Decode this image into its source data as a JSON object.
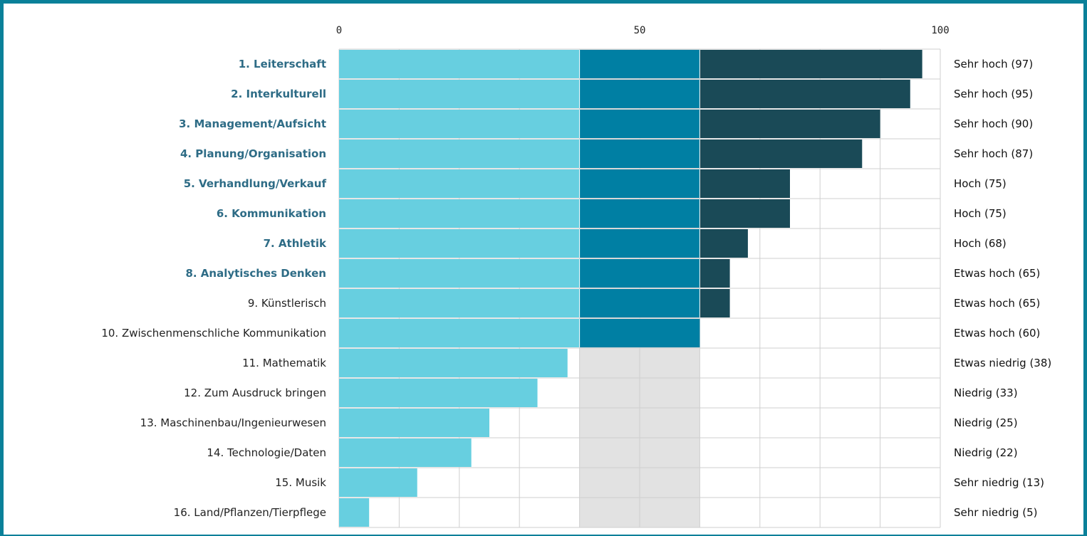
{
  "chart_data": {
    "type": "bar",
    "orientation": "horizontal",
    "stacked": true,
    "title": "",
    "xlabel": "",
    "ylabel": "",
    "xlim": [
      0,
      100
    ],
    "x_ticks": [
      "0",
      "50",
      "100"
    ],
    "grid": true,
    "legend": "none",
    "reference_band": [
      40,
      60
    ],
    "categories": [
      "1. Leiterschaft",
      "2. Interkulturell",
      "3. Management/Aufsicht",
      "4. Planung/Organisation",
      "5. Verhandlung/Verkauf",
      "6. Kommunikation",
      "7. Athletik",
      "8. Analytisches Denken",
      "9. Künstlerisch",
      "10. Zwischenmenschliche Kommunikation",
      "11. Mathematik",
      "12. Zum Ausdruck bringen",
      "13. Maschinenbau/Ingenieurwesen",
      "14. Technologie/Daten",
      "15. Musik",
      "16. Land/Pflanzen/Tierpflege"
    ],
    "highlighted": [
      true,
      true,
      true,
      true,
      true,
      true,
      true,
      true,
      false,
      false,
      false,
      false,
      false,
      false,
      false,
      false
    ],
    "values": [
      97,
      95,
      90,
      87,
      75,
      75,
      68,
      65,
      65,
      60,
      38,
      33,
      25,
      22,
      13,
      5
    ],
    "level_labels": [
      "Sehr hoch (97)",
      "Sehr hoch (95)",
      "Sehr hoch (90)",
      "Sehr hoch (87)",
      "Hoch (75)",
      "Hoch (75)",
      "Hoch (68)",
      "Etwas hoch (65)",
      "Etwas hoch (65)",
      "Etwas hoch (60)",
      "Etwas niedrig (38)",
      "Niedrig (33)",
      "Niedrig (25)",
      "Niedrig (22)",
      "Sehr niedrig (13)",
      "Sehr niedrig (5)"
    ],
    "colors": {
      "segment_low": "#67cfe0",
      "segment_mid": "#007fa3",
      "segment_high": "#1a4a57",
      "band": "#e2e2e2",
      "grid": "#cfcfcf",
      "frame": "#0a8099",
      "highlight_text": "#2e6c86"
    }
  }
}
